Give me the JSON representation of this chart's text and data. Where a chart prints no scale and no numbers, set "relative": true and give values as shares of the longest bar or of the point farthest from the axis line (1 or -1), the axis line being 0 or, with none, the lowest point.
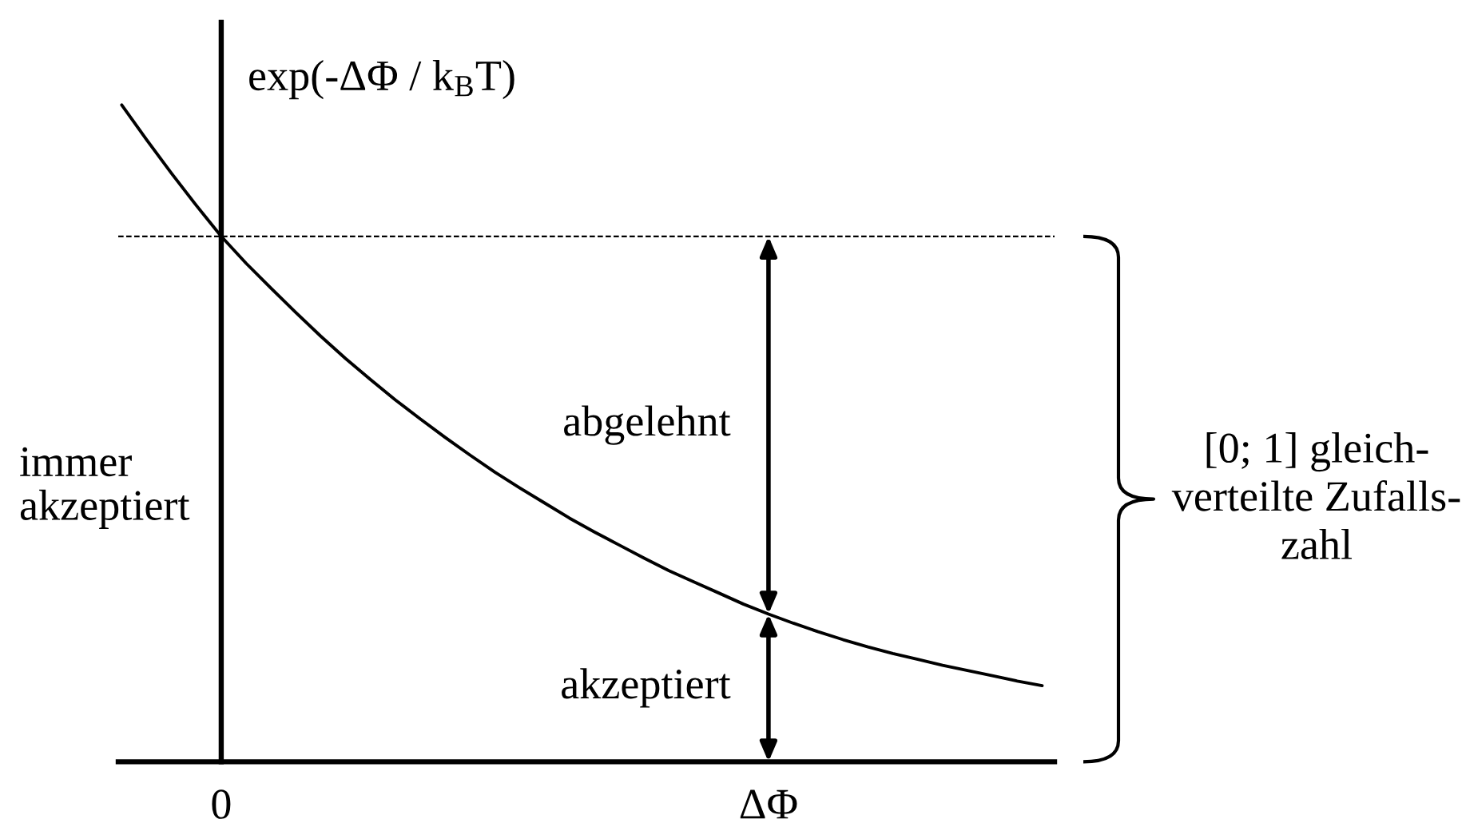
{
  "chart_data": {
    "type": "line",
    "relative": true,
    "ylabel": "exp(-ΔΦ / k$_{B}$T)",
    "categories": [
      null,
      null,
      null,
      null,
      "0",
      null,
      null,
      null,
      null,
      null,
      null,
      null,
      null,
      null,
      null,
      null,
      null,
      null,
      null,
      null,
      null,
      null,
      null,
      null,
      null,
      null,
      "ΔΦ",
      null,
      null,
      null,
      null,
      null,
      null,
      null,
      null,
      null,
      null,
      null
    ],
    "series": [
      {
        "color": "#000000",
        "values": [
          1.0,
          0.947,
          0.896,
          0.847,
          0.8,
          0.759,
          0.721,
          0.684,
          0.648,
          0.614,
          0.582,
          0.551,
          0.522,
          0.494,
          0.467,
          0.441,
          0.417,
          0.394,
          0.371,
          0.35,
          0.33,
          0.31,
          0.291,
          0.274,
          0.257,
          0.24,
          0.225,
          0.211,
          0.198,
          0.186,
          0.175,
          0.165,
          0.156,
          0.147,
          0.139,
          0.131,
          0.123,
          0.116
        ]
      }
    ],
    "ref_lines": [
      {
        "axis": "y",
        "value": 0.8,
        "color": "#000000",
        "line_style": "dashed"
      }
    ],
    "annotations": [
      "immer\nakzeptiert",
      "abgelehnt",
      "akzeptiert",
      "[0; 1] gleich-\nverteilte Zufalls-\nzahl"
    ],
    "marker": "none",
    "line_style": "solid"
  }
}
